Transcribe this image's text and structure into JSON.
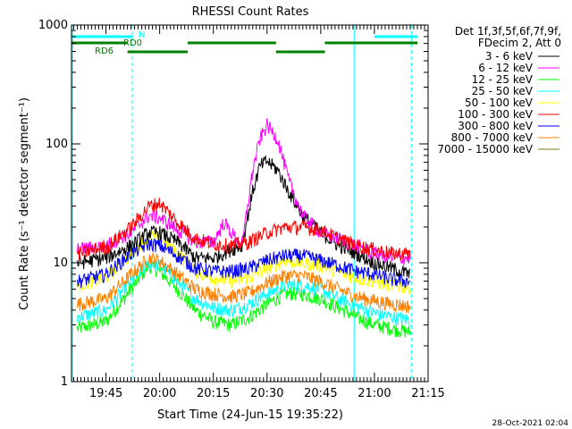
{
  "chart_data": {
    "type": "line",
    "title": "RHESSI Count Rates",
    "xlabel": "Start Time (24-Jun-15 19:35:22)",
    "ylabel": "Count Rate (s⁻¹ detector segment⁻¹)",
    "y_scale": "log",
    "ylim": [
      1,
      1000
    ],
    "xlim": [
      "19:35:22",
      "21:15:00"
    ],
    "y_ticks": [
      "1",
      "10",
      "100",
      "1000"
    ],
    "x_ticks": [
      "19:45",
      "20:00",
      "20:15",
      "20:30",
      "20:45",
      "21:00",
      "21:15"
    ],
    "legend_header": [
      "Det 1f,3f,5f,6f,7f,9f,",
      "FDecim 2, Att 0"
    ],
    "legend_position": "right",
    "footer_date": "28-Oct-2021 02:04",
    "series": [
      {
        "name": "3 - 6 keV",
        "color": "#000000",
        "x": [
          "19:37",
          "19:45",
          "19:52",
          "19:57",
          "20:00",
          "20:05",
          "20:10",
          "20:15",
          "20:20",
          "20:23",
          "20:26",
          "20:28",
          "20:30",
          "20:33",
          "20:36",
          "20:40",
          "20:45",
          "20:50",
          "20:55",
          "21:00",
          "21:05",
          "21:10"
        ],
        "values": [
          10,
          11,
          14,
          18,
          18,
          15,
          11,
          11,
          13,
          14,
          40,
          65,
          72,
          60,
          40,
          25,
          18,
          14,
          12,
          10,
          9,
          8
        ]
      },
      {
        "name": "6 - 12 keV",
        "color": "#ff00ff",
        "x": [
          "19:37",
          "19:45",
          "19:52",
          "19:57",
          "20:00",
          "20:05",
          "20:10",
          "20:15",
          "20:18",
          "20:20",
          "20:23",
          "20:26",
          "20:28",
          "20:30",
          "20:33",
          "20:36",
          "20:40",
          "20:45",
          "20:50",
          "20:55",
          "21:00",
          "21:05",
          "21:10"
        ],
        "values": [
          13,
          14,
          18,
          25,
          24,
          19,
          15,
          15,
          22,
          18,
          14,
          60,
          110,
          145,
          110,
          50,
          25,
          18,
          16,
          14,
          12,
          11,
          11
        ]
      },
      {
        "name": "12 - 25 keV",
        "color": "#00ff00",
        "x": [
          "19:37",
          "19:45",
          "19:52",
          "19:57",
          "20:00",
          "20:05",
          "20:10",
          "20:15",
          "20:20",
          "20:25",
          "20:30",
          "20:35",
          "20:40",
          "20:45",
          "20:50",
          "20:55",
          "21:00",
          "21:05",
          "21:10"
        ],
        "values": [
          2.8,
          3.2,
          6.0,
          9.5,
          8.5,
          6.0,
          4.0,
          3.2,
          3.0,
          3.5,
          4.5,
          5.5,
          5.5,
          5.0,
          4.2,
          3.5,
          3.0,
          2.8,
          2.6
        ]
      },
      {
        "name": "25 - 50 keV",
        "color": "#00ffff",
        "x": [
          "19:37",
          "19:45",
          "19:52",
          "19:57",
          "20:00",
          "20:05",
          "20:10",
          "20:15",
          "20:20",
          "20:25",
          "20:30",
          "20:35",
          "20:40",
          "20:45",
          "20:50",
          "20:55",
          "21:00",
          "21:05",
          "21:10"
        ],
        "values": [
          3.5,
          4.0,
          7.0,
          10,
          9.5,
          7.0,
          5.0,
          4.2,
          4.0,
          4.5,
          5.5,
          6.5,
          6.5,
          6.0,
          5.0,
          4.3,
          3.8,
          3.5,
          3.3
        ]
      },
      {
        "name": "50 - 100 keV",
        "color": "#ffff00",
        "x": [
          "19:37",
          "19:45",
          "19:52",
          "19:57",
          "20:00",
          "20:05",
          "20:10",
          "20:15",
          "20:20",
          "20:25",
          "20:30",
          "20:35",
          "20:40",
          "20:45",
          "20:50",
          "20:55",
          "21:00",
          "21:05",
          "21:10"
        ],
        "values": [
          6.5,
          7.5,
          12,
          17,
          16,
          12,
          8.5,
          7.5,
          7.0,
          7.5,
          9.0,
          10.5,
          10,
          9.5,
          8.5,
          7.5,
          7.0,
          6.5,
          6.3
        ]
      },
      {
        "name": "100 - 300 keV",
        "color": "#ff0000",
        "x": [
          "19:37",
          "19:45",
          "19:52",
          "19:57",
          "20:00",
          "20:05",
          "20:10",
          "20:15",
          "20:20",
          "20:25",
          "20:30",
          "20:35",
          "20:40",
          "20:45",
          "20:50",
          "20:55",
          "21:00",
          "21:05",
          "21:10"
        ],
        "values": [
          12,
          13.5,
          20,
          30,
          32,
          22,
          16,
          14.5,
          14,
          15,
          18,
          20,
          20,
          19,
          16,
          14,
          13,
          12,
          12
        ]
      },
      {
        "name": "300 - 800 keV",
        "color": "#0000ff",
        "x": [
          "19:37",
          "19:45",
          "19:52",
          "19:57",
          "20:00",
          "20:05",
          "20:10",
          "20:15",
          "20:20",
          "20:25",
          "20:30",
          "20:35",
          "20:40",
          "20:45",
          "20:50",
          "20:55",
          "21:00",
          "21:05",
          "21:10"
        ],
        "values": [
          7.0,
          8.0,
          12,
          14.5,
          14,
          11.5,
          9.0,
          8.5,
          8.5,
          9.0,
          10.5,
          11.5,
          11.5,
          10.5,
          9.5,
          8.5,
          8.0,
          7.2,
          7.0
        ]
      },
      {
        "name": "800 - 7000 keV",
        "color": "#ff8000",
        "x": [
          "19:37",
          "19:45",
          "19:52",
          "19:57",
          "20:00",
          "20:05",
          "20:10",
          "20:15",
          "20:20",
          "20:25",
          "20:30",
          "20:35",
          "20:40",
          "20:45",
          "20:50",
          "20:55",
          "21:00",
          "21:05",
          "21:10"
        ],
        "values": [
          4.5,
          5.0,
          8.0,
          11,
          10.5,
          8.0,
          6.0,
          5.5,
          5.2,
          5.6,
          6.8,
          7.8,
          7.8,
          7.0,
          6.0,
          5.2,
          4.8,
          4.5,
          4.3
        ]
      },
      {
        "name": "7000 - 15000 keV",
        "color": "#808000",
        "x": [],
        "values": []
      }
    ],
    "state_bars": [
      {
        "label": "",
        "color": "#00ffff",
        "segments": [
          [
            "19:35:22",
            "19:52:30"
          ],
          [
            "21:00:00",
            "21:12:00"
          ]
        ]
      },
      {
        "label": "N",
        "color": "#00ffff",
        "segments": []
      },
      {
        "label": "RD0",
        "color": "#008000",
        "segments": [
          [
            "19:35:22",
            "19:51:00"
          ],
          [
            "20:07:50",
            "20:32:30"
          ],
          [
            "20:46:10",
            "21:12:00"
          ]
        ]
      },
      {
        "label": "RD6",
        "color": "#008000",
        "segments": [
          [
            "19:51:00",
            "20:07:50"
          ],
          [
            "20:32:30",
            "20:46:10"
          ]
        ]
      }
    ],
    "vertical_lines": [
      {
        "time": "19:35:40",
        "style": "solid",
        "color": "#00ffff"
      },
      {
        "time": "19:52:20",
        "style": "dashed",
        "color": "#00ffff"
      },
      {
        "time": "20:54:20",
        "style": "solid",
        "color": "#00ffff"
      },
      {
        "time": "21:10:20",
        "style": "dashed",
        "color": "#00ffff"
      }
    ]
  }
}
